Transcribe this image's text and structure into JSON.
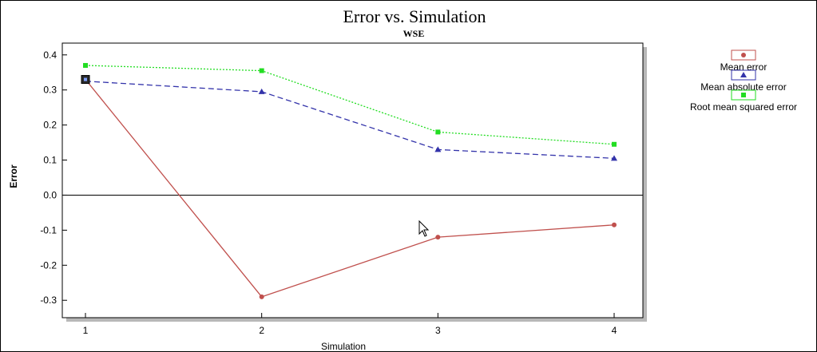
{
  "chart_data": {
    "type": "line",
    "title": "Error vs. Simulation",
    "subtitle": "WSE",
    "xlabel": "Simulation",
    "ylabel": "Error",
    "x": [
      1,
      2,
      3,
      4
    ],
    "x_ticks": [
      "1",
      "2",
      "3",
      "4"
    ],
    "ylim": [
      -0.32,
      0.42
    ],
    "y_ticks": [
      "0.4",
      "0.3",
      "0.2",
      "0.1",
      "0.0",
      "-0.1",
      "-0.2",
      "-0.3"
    ],
    "y_tick_values": [
      0.4,
      0.3,
      0.2,
      0.1,
      0.0,
      -0.1,
      -0.2,
      -0.3
    ],
    "grid": false,
    "zero_line": true,
    "legend_position": "right",
    "series": [
      {
        "name": "Mean error",
        "values": [
          0.33,
          -0.29,
          -0.12,
          -0.085
        ],
        "color": "#c0504d",
        "marker": "circle",
        "line_style": "solid"
      },
      {
        "name": "Mean absolute error",
        "values": [
          0.325,
          0.295,
          0.13,
          0.105
        ],
        "color": "#3333aa",
        "marker": "triangle",
        "line_style": "dashed"
      },
      {
        "name": "Root mean squared error",
        "values": [
          0.37,
          0.355,
          0.18,
          0.145
        ],
        "color": "#22dd22",
        "marker": "square",
        "line_style": "dotted"
      }
    ]
  }
}
